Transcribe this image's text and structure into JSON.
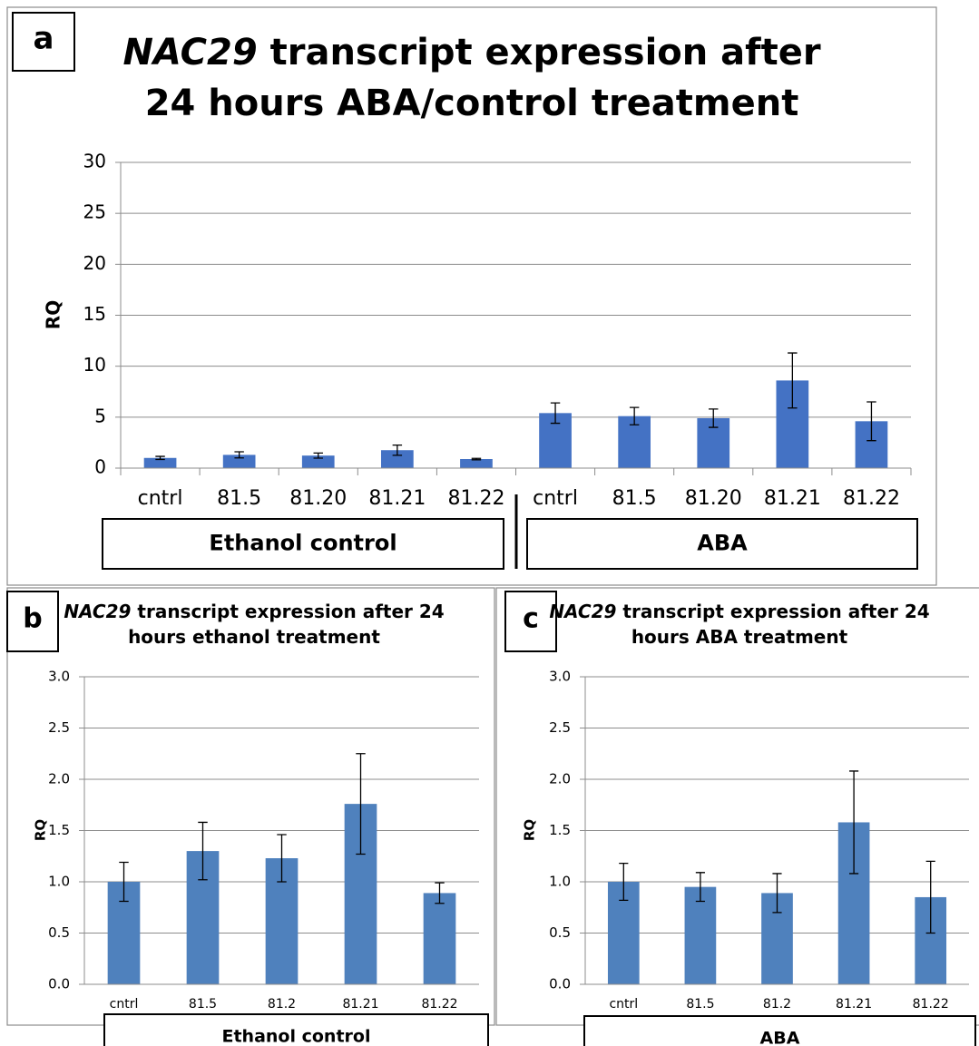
{
  "chart_data": [
    {
      "type": "bar",
      "panel_label": "a",
      "title": [
        {
          "text": "NAC29",
          "italic": true
        },
        {
          "text": " transcript expression after 24 hours ABA/control treatment",
          "italic": false
        }
      ],
      "ylabel": "RQ",
      "categories": [
        "cntrl",
        "81.5",
        "81.20",
        "81.21",
        "81.22",
        "cntrl",
        "81.5",
        "81.20",
        "81.21",
        "81.22"
      ],
      "values": [
        1.0,
        1.3,
        1.23,
        1.76,
        0.89,
        5.4,
        5.1,
        4.9,
        8.6,
        4.6
      ],
      "errors": [
        0.15,
        0.3,
        0.25,
        0.5,
        0.07,
        1.0,
        0.85,
        0.9,
        2.7,
        1.9
      ],
      "groups": [
        "Ethanol control",
        "ABA"
      ],
      "color": "#4472c4",
      "ylim": [
        0,
        30
      ],
      "yticks": [
        0,
        5,
        10,
        15,
        20,
        25,
        30
      ],
      "grid": true
    },
    {
      "type": "bar",
      "panel_label": "b",
      "title": [
        {
          "text": "NAC29",
          "italic": true
        },
        {
          "text": " transcript expression after 24 hours ethanol treatment",
          "italic": false
        }
      ],
      "ylabel": "RQ",
      "categories": [
        "cntrl",
        "81.5",
        "81.2",
        "81.21",
        "81.22"
      ],
      "values": [
        1.0,
        1.3,
        1.23,
        1.76,
        0.89
      ],
      "errors": [
        0.19,
        0.28,
        0.23,
        0.49,
        0.1
      ],
      "groups": [
        "Ethanol control"
      ],
      "color": "#4f81bd",
      "ylim": [
        0,
        3
      ],
      "yticks": [
        {
          "value": 0,
          "label": "0.0"
        },
        {
          "value": 0.5,
          "label": "0.5"
        },
        {
          "value": 1,
          "label": "1.0"
        },
        {
          "value": 1.5,
          "label": "1.5"
        },
        {
          "value": 2,
          "label": "2.0"
        },
        {
          "value": 2.5,
          "label": "2.5"
        },
        {
          "value": 3,
          "label": "3.0"
        }
      ],
      "grid": true
    },
    {
      "type": "bar",
      "panel_label": "c",
      "title": [
        {
          "text": "NAC29",
          "italic": true
        },
        {
          "text": " transcript expression after 24 hours ABA treatment",
          "italic": false
        }
      ],
      "ylabel": "RQ",
      "categories": [
        "cntrl",
        "81.5",
        "81.2",
        "81.21",
        "81.22"
      ],
      "values": [
        1.0,
        0.95,
        0.89,
        1.58,
        0.85
      ],
      "errors": [
        0.18,
        0.14,
        0.19,
        0.5,
        0.35
      ],
      "groups": [
        "ABA"
      ],
      "color": "#4f81bd",
      "ylim": [
        0,
        3
      ],
      "yticks": [
        {
          "value": 0,
          "label": "0.0"
        },
        {
          "value": 0.5,
          "label": "0.5"
        },
        {
          "value": 1,
          "label": "1.0"
        },
        {
          "value": 1.5,
          "label": "1.5"
        },
        {
          "value": 2,
          "label": "2.0"
        },
        {
          "value": 2.5,
          "label": "2.5"
        },
        {
          "value": 3,
          "label": "3.0"
        }
      ],
      "grid": true
    }
  ]
}
